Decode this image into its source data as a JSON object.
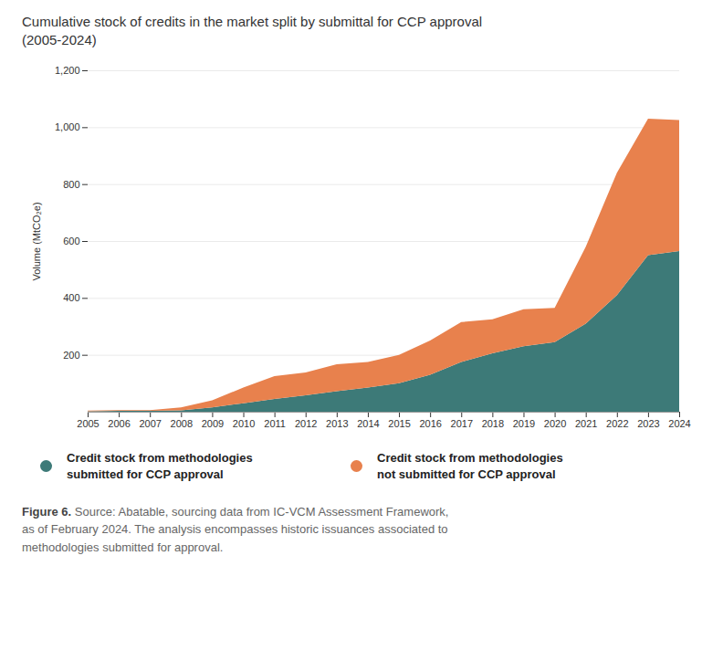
{
  "chart_data": {
    "type": "area",
    "stacked": true,
    "title": "Cumulative stock of credits in the market split by submittal for CCP approval",
    "subtitle": "(2005-2024)",
    "ylabel": "Volume (MtCO₂e)",
    "x": [
      2005,
      2006,
      2007,
      2008,
      2009,
      2010,
      2011,
      2012,
      2013,
      2014,
      2015,
      2016,
      2017,
      2018,
      2019,
      2020,
      2021,
      2022,
      2023,
      2024
    ],
    "series": [
      {
        "name": "Credit stock from methodologies\nsubmitted for CCP approval",
        "color": "#3d7a78",
        "values": [
          2,
          3,
          3,
          5,
          15,
          30,
          45,
          58,
          72,
          85,
          100,
          130,
          175,
          205,
          230,
          245,
          310,
          410,
          550,
          565
        ]
      },
      {
        "name": "Credit stock from methodologies\nnot submitted for CCP approval",
        "color": "#e8814d",
        "values": [
          2,
          3,
          3,
          10,
          25,
          55,
          80,
          80,
          95,
          90,
          100,
          120,
          140,
          120,
          130,
          120,
          270,
          430,
          480,
          460
        ]
      }
    ],
    "xlim": [
      2005,
      2024
    ],
    "xticks": [
      2005,
      2006,
      2007,
      2008,
      2009,
      2010,
      2011,
      2012,
      2013,
      2014,
      2015,
      2016,
      2017,
      2018,
      2019,
      2020,
      2021,
      2022,
      2023,
      2024
    ],
    "ylim": [
      0,
      1200
    ],
    "yticks": [
      200,
      400,
      600,
      800,
      {
        "value": 1000,
        "label": "1,000"
      },
      {
        "value": 1200,
        "label": "1,200"
      }
    ],
    "grid": true,
    "legend": "bottom",
    "caption_label": "Figure 6.",
    "caption": " Source: Abatable, sourcing data from IC-VCM Assessment Framework,\nas of February 2024. The analysis encompasses historic issuances associated to\nmethodologies submitted for approval."
  }
}
